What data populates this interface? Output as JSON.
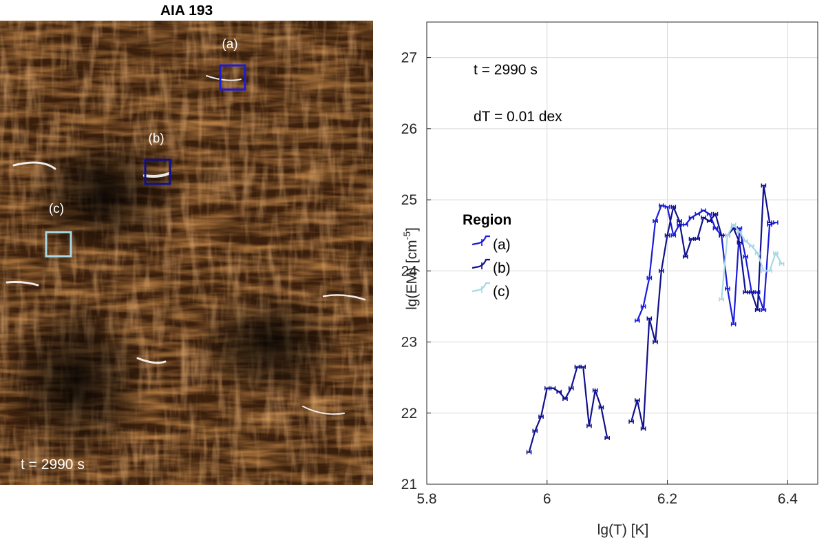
{
  "image_panel": {
    "title": "AIA 193",
    "time_label": "t = 2990 s",
    "region_labels": [
      "(a)",
      "(b)",
      "(c)"
    ],
    "region_colors": [
      "#1a1adc",
      "#10108c",
      "#a8d8e4"
    ]
  },
  "chart_data": {
    "type": "line",
    "title": "",
    "xlabel": "lg(T) [K]",
    "ylabel": "lg(EM) [cm",
    "ylabel_exp": "-5",
    "xlim": [
      5.8,
      6.45
    ],
    "ylim": [
      21,
      27.5
    ],
    "xticks": [
      5.8,
      6,
      6.2,
      6.4
    ],
    "xtick_labels": [
      "5.8",
      "6",
      "6.2",
      "6.4"
    ],
    "yticks": [
      21,
      22,
      23,
      24,
      25,
      26,
      27
    ],
    "ytick_labels": [
      "21",
      "22",
      "23",
      "24",
      "25",
      "26",
      "27"
    ],
    "grid": true,
    "annotations": [
      "t = 2990 s",
      "dT = 0.01 dex"
    ],
    "legend": {
      "title": "Region",
      "placement": "mid-left"
    },
    "series": [
      {
        "name": "(a)",
        "color": "#1a1adc",
        "x": [
          6.15,
          6.16,
          6.17,
          6.18,
          6.19,
          6.2,
          6.21,
          6.22,
          6.23,
          6.24,
          6.25,
          6.26,
          6.27,
          6.28,
          6.29,
          6.3,
          6.31,
          6.32,
          6.33,
          6.34,
          6.35,
          6.36,
          6.37,
          6.38
        ],
        "y": [
          23.3,
          23.5,
          23.9,
          24.7,
          24.92,
          24.9,
          24.5,
          24.65,
          24.65,
          24.75,
          24.8,
          24.85,
          24.8,
          24.6,
          24.5,
          23.75,
          23.25,
          24.6,
          24.2,
          23.7,
          23.7,
          23.45,
          24.65,
          24.68
        ]
      },
      {
        "name": "(b)",
        "color": "#10108c",
        "x": [
          5.97,
          5.98,
          5.99,
          6.0,
          6.01,
          6.02,
          6.03,
          6.04,
          6.05,
          6.06,
          6.07,
          6.08,
          6.09,
          6.1,
          6.14,
          6.15,
          6.16,
          6.17,
          6.18,
          6.19,
          6.2,
          6.21,
          6.22,
          6.23,
          6.24,
          6.25,
          6.26,
          6.27,
          6.28,
          6.29,
          6.3,
          6.31,
          6.32,
          6.33,
          6.34,
          6.35,
          6.36,
          6.37
        ],
        "y": [
          21.45,
          21.75,
          21.95,
          22.35,
          22.35,
          22.3,
          22.2,
          22.35,
          22.65,
          22.65,
          21.82,
          22.32,
          22.08,
          21.65,
          21.88,
          22.18,
          21.78,
          23.33,
          23.0,
          24.0,
          24.5,
          24.9,
          24.7,
          24.2,
          24.45,
          24.45,
          24.75,
          24.7,
          24.8,
          24.5,
          24.5,
          24.6,
          24.4,
          23.7,
          23.7,
          23.45,
          25.2,
          24.68
        ]
      },
      {
        "name": "(c)",
        "color": "#a8d8e4",
        "x": [
          6.29,
          6.3,
          6.31,
          6.32,
          6.33,
          6.34,
          6.35,
          6.36,
          6.37,
          6.38,
          6.39
        ],
        "y": [
          23.6,
          24.5,
          24.65,
          24.55,
          24.42,
          24.35,
          24.25,
          24.0,
          24.0,
          24.25,
          24.1
        ]
      }
    ]
  }
}
